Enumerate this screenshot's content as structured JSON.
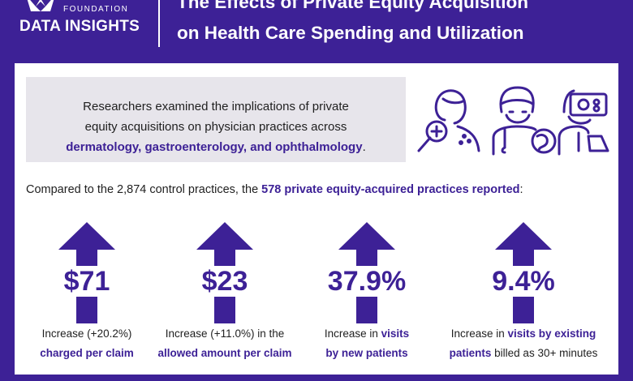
{
  "header": {
    "org_small": "FOUNDATION",
    "org_name": "DATA INSIGHTS",
    "title_line1": "The Effects of Private Equity Acquisition",
    "title_line2": "on Health Care Spending and Utilization"
  },
  "intro": {
    "line1": "Researchers examined the implications of private",
    "line2": "equity acquisitions on physician practices across",
    "specialties": "dermatology, gastroenterology, and ophthalmology",
    "period": "."
  },
  "icons": [
    "dermatology-icon",
    "gastroenterology-icon",
    "ophthalmology-icon"
  ],
  "comparison": {
    "prefix": "Compared to the 2,874 control practices, the",
    "highlight": "578 private equity-acquired practices reported",
    "suffix": ":"
  },
  "stats": [
    {
      "value": "$71",
      "line1": "Increase (+20.2%)",
      "line2_pre": "",
      "line2_hl": "charged per claim",
      "line2_post": "",
      "line1_hl": ""
    },
    {
      "value": "$23",
      "line1": "Increase (+11.0%) in the",
      "line2_pre": "",
      "line2_hl": "allowed amount per claim",
      "line2_post": "",
      "line1_hl": ""
    },
    {
      "value": "37.9%",
      "line1": "Increase in ",
      "line1_hl": "visits",
      "line2_pre": "",
      "line2_hl": "by new patients",
      "line2_post": ""
    },
    {
      "value": "9.4%",
      "line1": "Increase in ",
      "line1_hl": "visits by existing",
      "line2_pre": "",
      "line2_hl": "patients",
      "line2_post": " billed as 30+ minutes"
    }
  ],
  "colors": {
    "brand": "#3d2196",
    "panel": "#e7e5eb",
    "text": "#1f1f1f"
  }
}
